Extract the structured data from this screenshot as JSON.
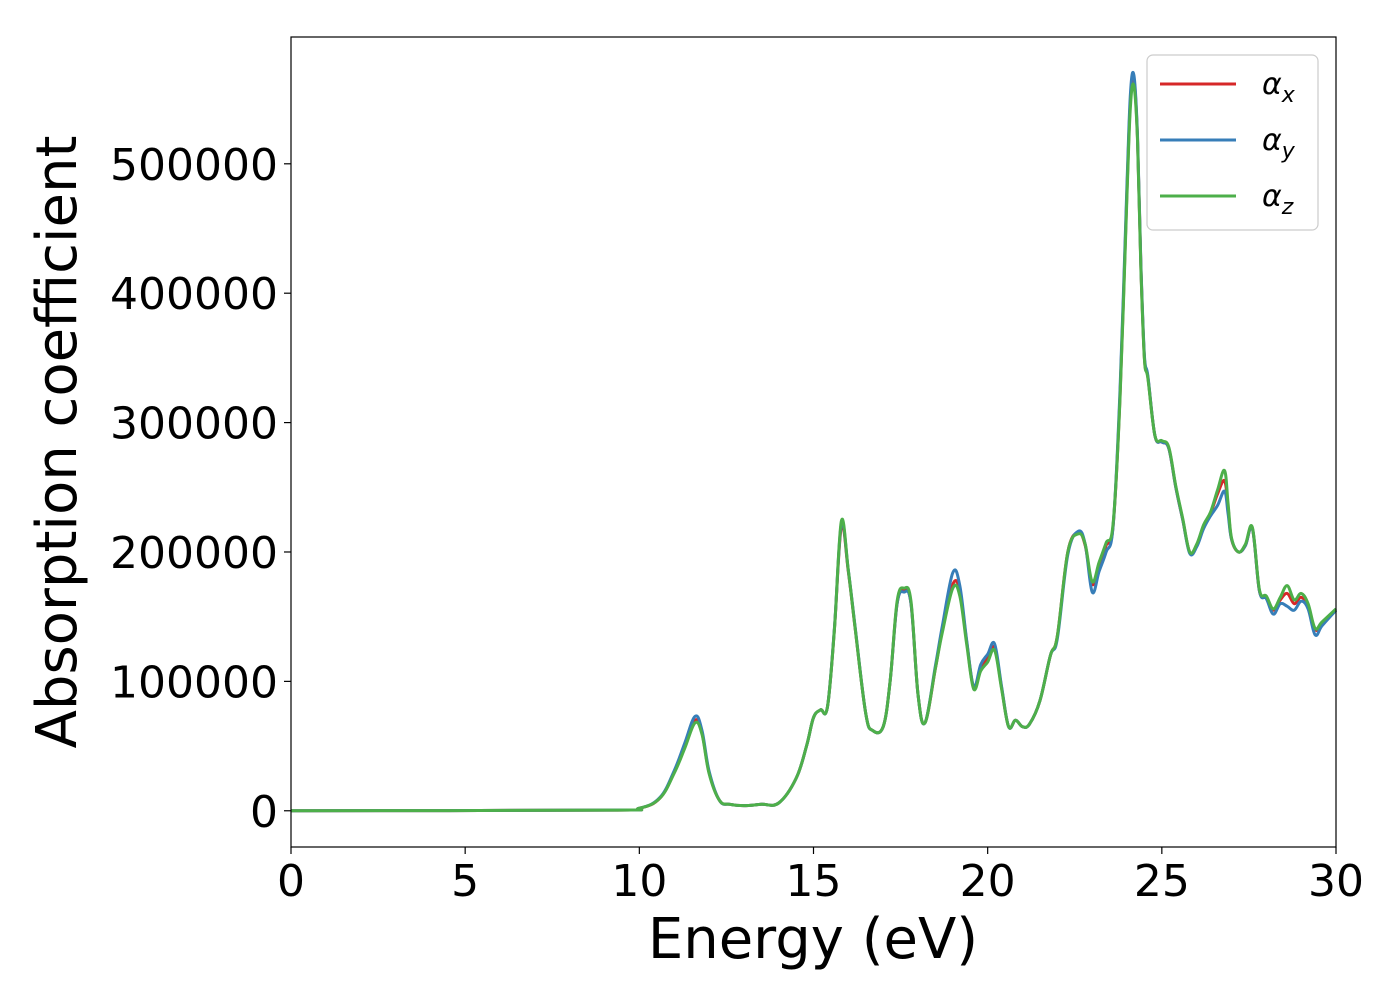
{
  "chart_data": {
    "type": "line",
    "title": "",
    "xlabel": "Energy (eV)",
    "ylabel": "Absorption coefficient",
    "xlim": [
      0,
      30
    ],
    "ylim": [
      -28000,
      598000
    ],
    "xticks": [
      0,
      5,
      10,
      15,
      20,
      25,
      30
    ],
    "yticks": [
      0,
      100000,
      200000,
      300000,
      400000,
      500000
    ],
    "grid": false,
    "legend_position": "top-right",
    "series": [
      {
        "name": "α_x",
        "symbol": "α",
        "subscript": "x",
        "color": "#d62728",
        "x": [
          0,
          9.0,
          10.0,
          10.6,
          11.0,
          11.3,
          11.6,
          11.8,
          12.0,
          12.3,
          12.6,
          13.0,
          13.5,
          14.0,
          14.5,
          14.8,
          15.0,
          15.2,
          15.4,
          15.6,
          15.8,
          16.0,
          16.2,
          16.5,
          16.7,
          17.0,
          17.2,
          17.4,
          17.6,
          17.8,
          18.0,
          18.2,
          18.5,
          18.7,
          19.0,
          19.2,
          19.4,
          19.6,
          19.8,
          20.0,
          20.2,
          20.4,
          20.6,
          20.8,
          21.0,
          21.2,
          21.5,
          21.8,
          22.0,
          22.3,
          22.6,
          22.8,
          23.0,
          23.2,
          23.4,
          23.6,
          23.8,
          24.0,
          24.1,
          24.2,
          24.3,
          24.4,
          24.5,
          24.6,
          24.8,
          25.0,
          25.2,
          25.4,
          25.6,
          25.8,
          26.0,
          26.2,
          26.4,
          26.6,
          26.8,
          26.9,
          27.0,
          27.2,
          27.4,
          27.6,
          27.8,
          28.0,
          28.2,
          28.4,
          28.6,
          28.8,
          29.0,
          29.2,
          29.4,
          29.6,
          30.0
        ],
        "values": [
          0,
          500,
          2000,
          10000,
          30000,
          50000,
          70000,
          60000,
          30000,
          8000,
          5000,
          4000,
          5000,
          6000,
          25000,
          50000,
          72000,
          78000,
          80000,
          140000,
          220000,
          185000,
          140000,
          75000,
          62000,
          65000,
          100000,
          160000,
          170000,
          160000,
          90000,
          68000,
          110000,
          140000,
          175000,
          170000,
          130000,
          95000,
          110000,
          118000,
          126000,
          95000,
          65000,
          70000,
          65000,
          67000,
          85000,
          120000,
          135000,
          200000,
          215000,
          205000,
          175000,
          190000,
          205000,
          220000,
          320000,
          480000,
          550000,
          565000,
          520000,
          420000,
          350000,
          335000,
          290000,
          285000,
          280000,
          250000,
          225000,
          200000,
          205000,
          220000,
          230000,
          245000,
          255000,
          235000,
          210000,
          200000,
          205000,
          218000,
          170000,
          165000,
          155000,
          163000,
          168000,
          160000,
          165000,
          158000,
          140000,
          145000,
          155000
        ]
      },
      {
        "name": "α_y",
        "symbol": "α",
        "subscript": "y",
        "color": "#377eb8",
        "x": [
          0,
          9.0,
          10.0,
          10.6,
          11.0,
          11.3,
          11.6,
          11.8,
          12.0,
          12.3,
          12.6,
          13.0,
          13.5,
          14.0,
          14.5,
          14.8,
          15.0,
          15.2,
          15.4,
          15.6,
          15.8,
          16.0,
          16.2,
          16.5,
          16.7,
          17.0,
          17.2,
          17.4,
          17.6,
          17.8,
          18.0,
          18.2,
          18.5,
          18.7,
          19.0,
          19.2,
          19.4,
          19.6,
          19.8,
          20.0,
          20.2,
          20.4,
          20.6,
          20.8,
          21.0,
          21.2,
          21.5,
          21.8,
          22.0,
          22.3,
          22.6,
          22.8,
          23.0,
          23.2,
          23.4,
          23.6,
          23.8,
          24.0,
          24.1,
          24.2,
          24.3,
          24.4,
          24.5,
          24.6,
          24.8,
          25.0,
          25.2,
          25.4,
          25.6,
          25.8,
          26.0,
          26.2,
          26.4,
          26.6,
          26.8,
          26.9,
          27.0,
          27.2,
          27.4,
          27.6,
          27.8,
          28.0,
          28.2,
          28.4,
          28.6,
          28.8,
          29.0,
          29.2,
          29.4,
          29.6,
          30.0
        ],
        "values": [
          0,
          500,
          2000,
          10500,
          31000,
          52000,
          73000,
          62000,
          31000,
          8000,
          5000,
          4000,
          5000,
          6000,
          25000,
          50000,
          72000,
          78000,
          80000,
          141000,
          222000,
          186000,
          141000,
          75000,
          62000,
          65000,
          100000,
          160000,
          169000,
          160000,
          90000,
          68000,
          112000,
          143000,
          184000,
          174000,
          131000,
          96000,
          113000,
          121000,
          129000,
          96000,
          65000,
          70000,
          65000,
          67000,
          85000,
          120000,
          133000,
          198000,
          216000,
          206000,
          169000,
          185000,
          200000,
          220000,
          325000,
          485000,
          555000,
          568000,
          522000,
          422000,
          352000,
          336000,
          290000,
          285000,
          280000,
          250000,
          225000,
          199000,
          204000,
          218000,
          228000,
          236000,
          247000,
          230000,
          210000,
          200000,
          205000,
          218000,
          170000,
          164000,
          152000,
          160000,
          158000,
          155000,
          162000,
          156000,
          136000,
          143000,
          155000
        ]
      },
      {
        "name": "α_z",
        "symbol": "α",
        "subscript": "z",
        "color": "#4daf4a",
        "x": [
          0,
          9.0,
          10.0,
          10.6,
          11.0,
          11.3,
          11.6,
          11.8,
          12.0,
          12.3,
          12.6,
          13.0,
          13.5,
          14.0,
          14.5,
          14.8,
          15.0,
          15.2,
          15.4,
          15.6,
          15.8,
          16.0,
          16.2,
          16.5,
          16.7,
          17.0,
          17.2,
          17.4,
          17.6,
          17.8,
          18.0,
          18.2,
          18.5,
          18.7,
          19.0,
          19.2,
          19.4,
          19.6,
          19.8,
          20.0,
          20.2,
          20.4,
          20.6,
          20.8,
          21.0,
          21.2,
          21.5,
          21.8,
          22.0,
          22.3,
          22.6,
          22.8,
          23.0,
          23.2,
          23.4,
          23.6,
          23.8,
          24.0,
          24.1,
          24.2,
          24.3,
          24.4,
          24.5,
          24.6,
          24.8,
          25.0,
          25.2,
          25.4,
          25.6,
          25.8,
          26.0,
          26.2,
          26.4,
          26.6,
          26.8,
          26.9,
          27.0,
          27.2,
          27.4,
          27.6,
          27.8,
          28.0,
          28.2,
          28.4,
          28.6,
          28.8,
          29.0,
          29.2,
          29.4,
          29.6,
          30.0
        ],
        "values": [
          0,
          500,
          2000,
          10000,
          29000,
          48000,
          68000,
          59000,
          29000,
          8000,
          5000,
          4000,
          5000,
          6000,
          25000,
          50000,
          72000,
          78000,
          80000,
          140000,
          224000,
          186000,
          140000,
          75000,
          62000,
          65000,
          100000,
          162000,
          172000,
          162000,
          90000,
          68000,
          110000,
          138000,
          172000,
          166000,
          128000,
          94000,
          108000,
          115000,
          124000,
          94000,
          65000,
          70000,
          65000,
          67000,
          85000,
          120000,
          135000,
          200000,
          214000,
          206000,
          177000,
          192000,
          207000,
          222000,
          318000,
          476000,
          545000,
          560000,
          518000,
          418000,
          349000,
          334000,
          290000,
          286000,
          281000,
          251000,
          226000,
          200000,
          206000,
          221000,
          231000,
          248000,
          263000,
          238000,
          211000,
          200000,
          206000,
          219000,
          171000,
          166000,
          156000,
          165000,
          174000,
          163000,
          168000,
          160000,
          141000,
          146000,
          156000
        ]
      }
    ]
  }
}
